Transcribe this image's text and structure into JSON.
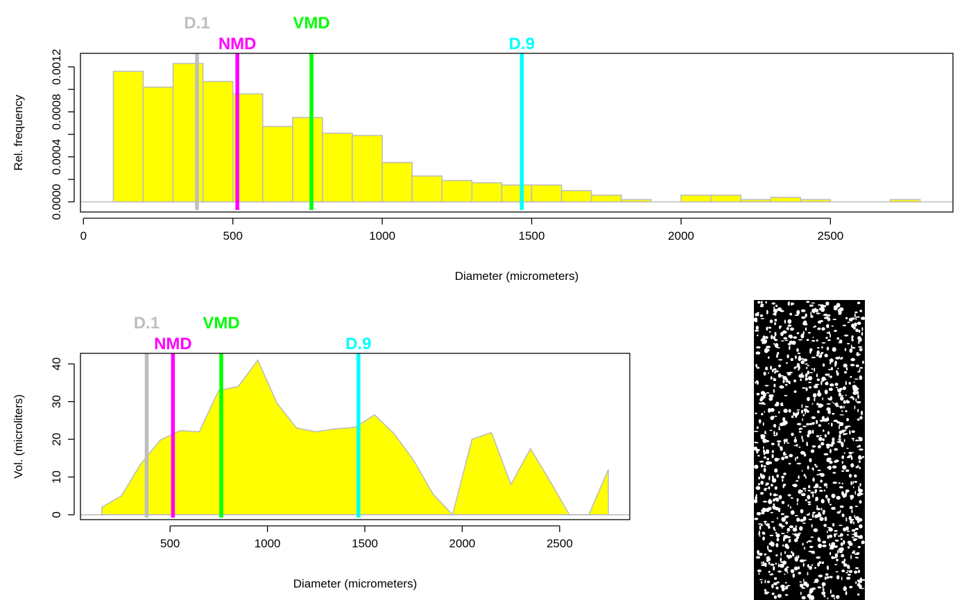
{
  "chart_data": [
    {
      "type": "bar",
      "xlabel": "Diameter (micrometers)",
      "ylabel": "Rel. frequency",
      "xlim": [
        -10,
        2910
      ],
      "ylim": [
        -9e-05,
        0.00132
      ],
      "x_ticks": [
        0,
        500,
        1000,
        1500,
        2000,
        2500
      ],
      "x_tick_labels": [
        "0",
        "500",
        "1000",
        "1500",
        "2000",
        "2500"
      ],
      "y_ticks": [
        0,
        0.0002,
        0.0004,
        0.0006,
        0.0008,
        0.001,
        0.0012
      ],
      "y_tick_labels": [
        "0.0000",
        "",
        "0.0004",
        "",
        "0.0008",
        "",
        "0.0012"
      ],
      "bin_width": 100,
      "bins": [
        100,
        200,
        300,
        400,
        500,
        600,
        700,
        800,
        900,
        1000,
        1100,
        1200,
        1300,
        1400,
        1500,
        1600,
        1700,
        1800,
        1900,
        2000,
        2100,
        2200,
        2300,
        2400,
        2500,
        2600,
        2700
      ],
      "values": [
        0.00116,
        0.00102,
        0.00123,
        0.00107,
        0.00096,
        0.00067,
        0.00075,
        0.00061,
        0.00059,
        0.00035,
        0.00023,
        0.00019,
        0.00017,
        0.00015,
        0.00015,
        0.0001,
        6e-05,
        2e-05,
        0,
        6e-05,
        6e-05,
        2e-05,
        4e-05,
        2e-05,
        0,
        0,
        2e-05
      ],
      "bar_color": "#ffff00",
      "bar_border": "#bebebe",
      "markers": [
        {
          "label": "D.1",
          "value": 380,
          "color": "#bebebe"
        },
        {
          "label": "NMD",
          "value": 515,
          "color": "#ff00ff"
        },
        {
          "label": "VMD",
          "value": 763,
          "color": "#00ff00"
        },
        {
          "label": "D.9",
          "value": 1467,
          "color": "#00ffff"
        }
      ]
    },
    {
      "type": "area",
      "xlabel": "Diameter (micrometers)",
      "ylabel": "Vol. (microliters)",
      "xlim": [
        40,
        2860
      ],
      "ylim": [
        -1.3,
        42.8
      ],
      "x_ticks": [
        500,
        1000,
        1500,
        2000,
        2500
      ],
      "x_tick_labels": [
        "500",
        "1000",
        "1500",
        "2000",
        "2500"
      ],
      "y_ticks": [
        0,
        10,
        20,
        30,
        40
      ],
      "y_tick_labels": [
        "0",
        "10",
        "20",
        "30",
        "40"
      ],
      "x": [
        150,
        250,
        350,
        450,
        550,
        650,
        750,
        850,
        950,
        1050,
        1150,
        1250,
        1350,
        1450,
        1550,
        1650,
        1750,
        1850,
        1950,
        2050,
        2150,
        2250,
        2350,
        2450,
        2550,
        2650,
        2750
      ],
      "values": [
        2,
        5,
        13.5,
        19.8,
        22.3,
        22,
        33,
        34,
        41,
        29.5,
        23,
        22,
        22.8,
        23.2,
        26.5,
        21.5,
        14.5,
        5.5,
        0,
        20,
        21.8,
        8,
        17.5,
        9,
        0,
        0,
        12
      ],
      "fill_color": "#ffff00",
      "line_color": "#bebebe",
      "markers": [
        {
          "label": "D.1",
          "value": 380,
          "color": "#bebebe"
        },
        {
          "label": "NMD",
          "value": 515,
          "color": "#ff00ff"
        },
        {
          "label": "VMD",
          "value": 763,
          "color": "#00ff00"
        },
        {
          "label": "D.9",
          "value": 1467,
          "color": "#00ffff"
        }
      ]
    }
  ],
  "image_panel": {
    "background": "#000000",
    "blob_color": "#ffffff"
  }
}
